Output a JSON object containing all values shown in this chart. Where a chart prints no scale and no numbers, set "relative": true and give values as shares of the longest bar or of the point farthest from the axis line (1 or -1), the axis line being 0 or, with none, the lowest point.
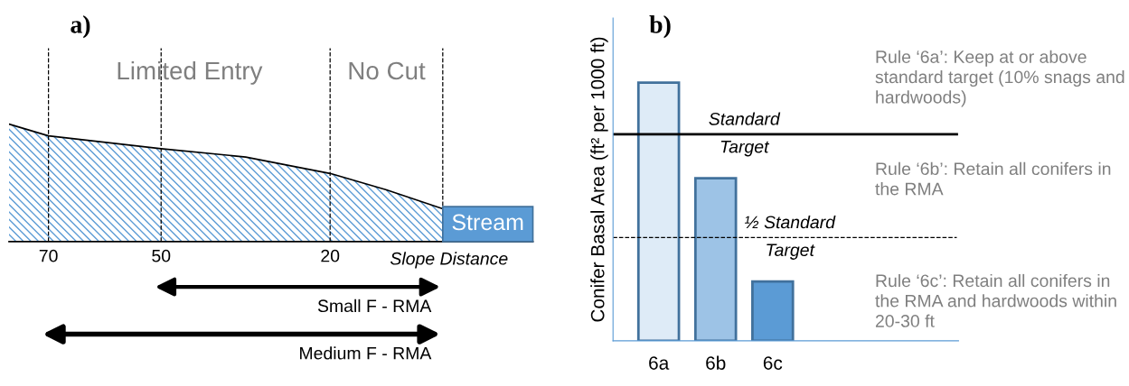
{
  "chart_data": [
    {
      "type": "area",
      "title": "a)",
      "xlabel": "Slope Distance",
      "relative": true,
      "x": [
        77,
        70,
        50,
        35,
        20,
        10,
        0
      ],
      "xlim": [
        77,
        -16
      ],
      "xticks": [
        70,
        50,
        20
      ],
      "tick_labels": "x",
      "series": [
        {
          "color": "#5b9bd5",
          "values": [
            1.0,
            0.9,
            0.79,
            0.72,
            0.58,
            0.44,
            0.28
          ]
        }
      ],
      "ref_lines": [
        {
          "axis": "x",
          "value": 70,
          "line_style": "dashed"
        },
        {
          "axis": "x",
          "value": 50,
          "line_style": "dashed"
        },
        {
          "axis": "x",
          "value": 20,
          "line_style": "dashed"
        },
        {
          "axis": "x",
          "value": 0,
          "line_style": "dashed"
        }
      ],
      "annotations": [
        "Limited Entry",
        "No Cut",
        "Stream",
        "Small F - RMA",
        "Medium F - RMA"
      ]
    },
    {
      "type": "bar",
      "title": "b)",
      "ylabel": "Conifer Basal Area (ft² per 1000 ft)",
      "relative": true,
      "categories": [
        "6a",
        "6b",
        "6c"
      ],
      "values": [
        1.0,
        0.63,
        0.23
      ],
      "colors": [
        "#deebf7",
        "#9dc3e6",
        "#5b9bd5"
      ],
      "ref_lines": [
        {
          "axis": "y",
          "value": 0.8,
          "label": "Standard Target",
          "line_style": "solid"
        },
        {
          "axis": "y",
          "value": 0.4,
          "label": "½ Standard Target",
          "line_style": "dashed"
        }
      ],
      "annotations": [
        "Rule ‘6a’: Keep at or above standard target (10% snags and hardwoods)",
        "Rule ‘6b’: Retain all conifers in the RMA",
        "Rule ‘6c’: Retain all conifers in the RMA and hardwoods within 20-30 ft"
      ]
    }
  ]
}
